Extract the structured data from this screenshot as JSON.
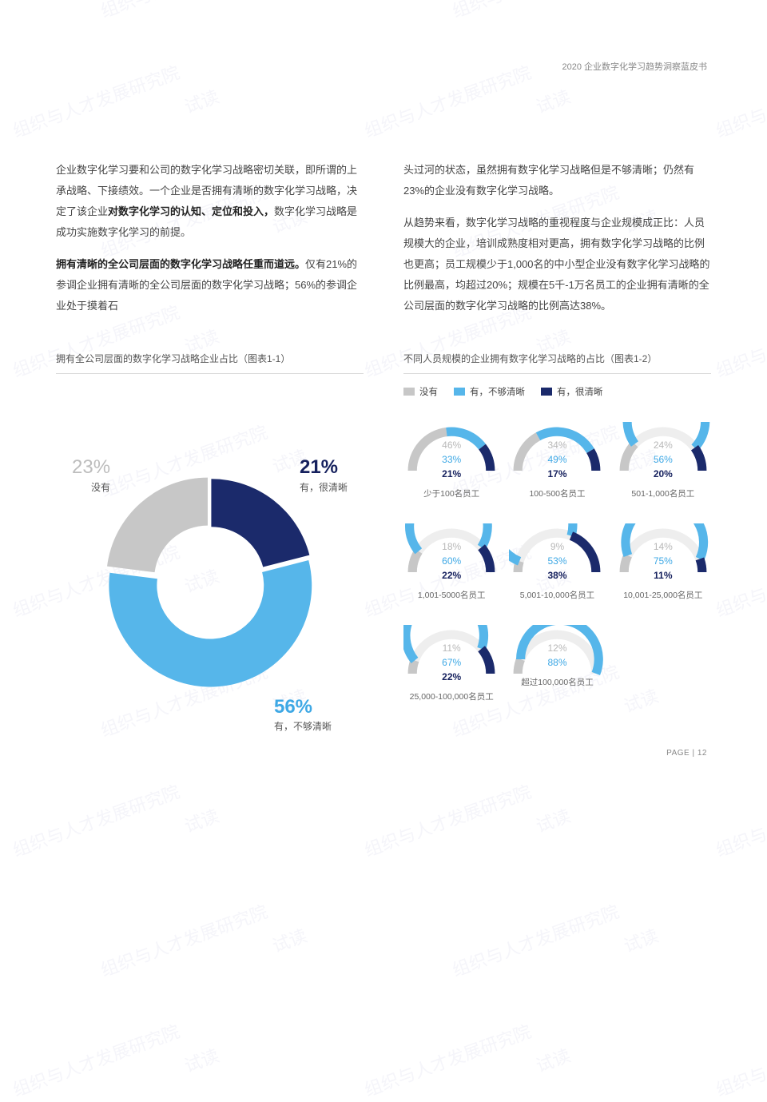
{
  "header": {
    "doc_title": "2020 企业数字化学习趋势洞察蓝皮书"
  },
  "footer": {
    "page_label": "PAGE | 12"
  },
  "watermark": {
    "text_a": "试读",
    "text_b": "组织与人才发展研究院"
  },
  "body": {
    "left_paragraphs": [
      "企业数字化学习要和公司的数字化学习战略密切关联，即所谓的上承战略、下接绩效。一个企业是否拥有清晰的数字化学习战略，决定了该企业<b>对数字化学习的认知、定位和投入，</b>数字化学习战略是成功实施数字化学习的前提。",
      "<b>拥有清晰的全公司层面的数字化学习战略任重而道远。</b>仅有21%的参调企业拥有清晰的全公司层面的数字化学习战略；56%的参调企业处于摸着石"
    ],
    "right_paragraphs": [
      "头过河的状态，虽然拥有数字化学习战略但是不够清晰；仍然有23%的企业没有数字化学习战略。",
      "从趋势来看，数字化学习战略的重视程度与企业规模成正比：人员规模大的企业，培训成熟度相对更高，拥有数字化学习战略的比例也更高；员工规模少于1,000名的中小型企业没有数字化学习战略的比例最高，均超过20%；规模在5千-1万名员工的企业拥有清晰的全公司层面的数字化学习战略的比例高达38%。"
    ]
  },
  "colors": {
    "gray": "#c7c7c7",
    "light": "#56b6ea",
    "dark": "#1b2a6b",
    "grid": "#d8d8d8",
    "text": "#444444"
  },
  "chart1": {
    "title": "拥有全公司层面的数字化学习战略企业占比（图表1-1）",
    "type": "donut",
    "inner_radius": 58,
    "outer_radius": 110,
    "segments": [
      {
        "key": "none",
        "label": "没有",
        "value": 23,
        "color": "#c7c7c7",
        "label_pos": "top-left",
        "pct_text": "23%"
      },
      {
        "key": "clear",
        "label": "有，很清晰",
        "value": 21,
        "color": "#1b2a6b",
        "label_pos": "top-right",
        "pct_text": "21%"
      },
      {
        "key": "unclear",
        "label": "有，不够清晰",
        "value": 56,
        "color": "#56b6ea",
        "label_pos": "bottom-right",
        "pct_text": "56%"
      }
    ]
  },
  "chart2": {
    "title": "不同人员规模的企业拥有数字化学习战略的占比（图表1-2）",
    "type": "gauge-multiples",
    "legend": [
      {
        "label": "没有",
        "color": "#c7c7c7"
      },
      {
        "label": "有，不够清晰",
        "color": "#56b6ea"
      },
      {
        "label": "有，很清晰",
        "color": "#1b2a6b"
      }
    ],
    "gauges": [
      {
        "label": "少于100名员工",
        "gray": 46,
        "light": 33,
        "dark": 21
      },
      {
        "label": "100-500名员工",
        "gray": 34,
        "light": 49,
        "dark": 17
      },
      {
        "label": "501-1,000名员工",
        "gray": 24,
        "light": 56,
        "dark": 20
      },
      {
        "label": "1,001-5000名员工",
        "gray": 18,
        "light": 60,
        "dark": 22
      },
      {
        "label": "5,001-10,000名员工",
        "gray": 9,
        "light": 53,
        "dark": 38
      },
      {
        "label": "10,001-25,000名员工",
        "gray": 14,
        "light": 75,
        "dark": 11
      },
      {
        "label": "25,000-100,000名员工",
        "gray": 11,
        "light": 67,
        "dark": 22
      },
      {
        "label": "超过100,000名员工",
        "gray": 12,
        "light": 88,
        "dark": 0
      }
    ],
    "gauge_style": {
      "stroke_width": 11,
      "radius": 48,
      "track_color": "#eeeeee"
    }
  }
}
